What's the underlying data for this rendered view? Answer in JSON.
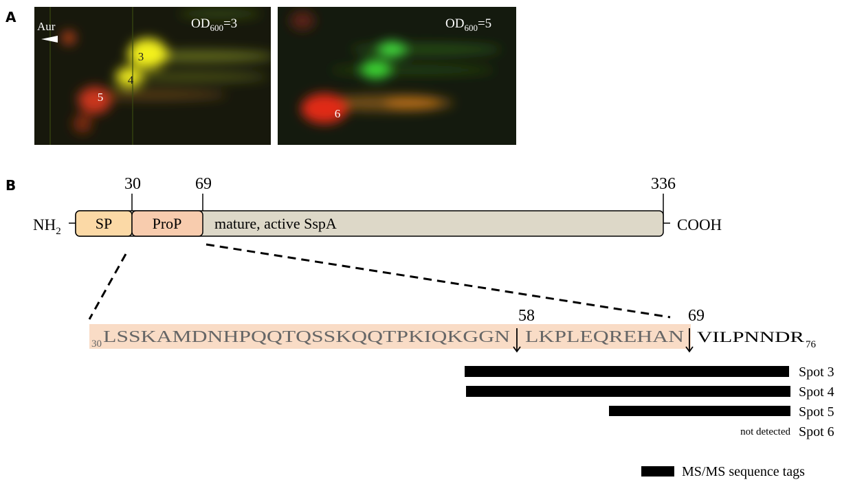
{
  "panel_labels": [
    "A",
    "B"
  ],
  "panel_a": {
    "marker": "Aur",
    "images": [
      {
        "od": {
          "base": "OD",
          "sub": "600",
          "rest": "=3"
        },
        "spots": [
          "3",
          "4",
          "5"
        ]
      },
      {
        "od": {
          "base": "OD",
          "sub": "600",
          "rest": "=5"
        },
        "spots": [
          "6"
        ]
      }
    ]
  },
  "panel_b": {
    "positions": [
      30,
      69,
      336
    ],
    "n_terminus": {
      "base": "NH",
      "sub": "2"
    },
    "domains": [
      "SP",
      "ProP",
      "mature, active SspA"
    ],
    "c_terminus": "COOH",
    "sequence": {
      "start": 30,
      "segments": [
        "LSSKAMDNHPQQTQSSKQQTPKIQKGGN",
        "LKPLEQREHAN"
      ],
      "cleavage_sites": [
        58,
        69
      ],
      "tail": "VILPNNDR",
      "end": 76
    },
    "spot_labels": [
      "Spot 3",
      "Spot 4",
      "Spot 5",
      "Spot 6"
    ],
    "spot_note": "not detected",
    "legend": "MS/MS sequence tags"
  }
}
